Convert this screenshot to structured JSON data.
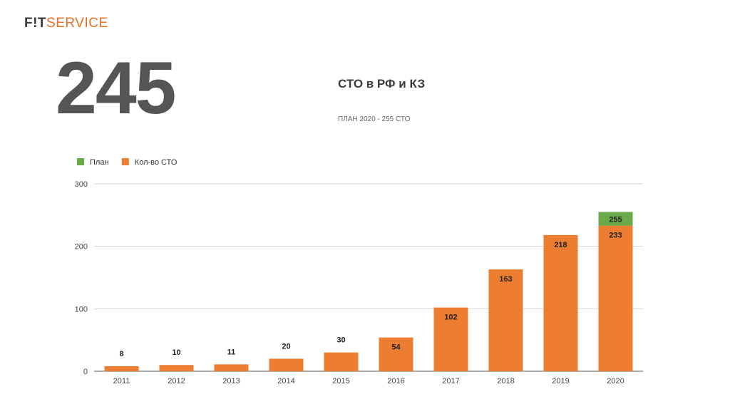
{
  "logo": {
    "part1": "F!T",
    "part2": "SERVICE"
  },
  "headline_number": "245",
  "headline": "СТО в РФ и КЗ",
  "subline": "ПЛАН 2020 - 255 СТО",
  "colors": {
    "plan": "#6aaa4a",
    "count": "#ed7d31",
    "logo_accent": "#e8702a",
    "big_number": "#555555"
  },
  "chart_data": {
    "type": "bar",
    "stacked": true,
    "categories": [
      "2011",
      "2012",
      "2013",
      "2014",
      "2015",
      "2016",
      "2017",
      "2018",
      "2019",
      "2020"
    ],
    "series": [
      {
        "name": "Кол-во СТО",
        "color": "#ed7d31",
        "values": [
          8,
          10,
          11,
          20,
          30,
          54,
          102,
          163,
          218,
          233
        ],
        "labels": [
          "8",
          "10",
          "11",
          "20",
          "30",
          "54",
          "102",
          "163",
          "218",
          "233"
        ]
      },
      {
        "name": "План",
        "color": "#6aaa4a",
        "values": [
          0,
          0,
          0,
          0,
          0,
          0,
          0,
          0,
          0,
          22
        ],
        "labels": [
          "",
          "",
          "",
          "",
          "",
          "",
          "",
          "",
          "",
          "255"
        ]
      }
    ],
    "legend": [
      {
        "name": "План",
        "color": "#6aaa4a"
      },
      {
        "name": "Кол-во СТО",
        "color": "#ed7d31"
      }
    ],
    "ylim": [
      0,
      300
    ],
    "yticks": [
      0,
      100,
      200,
      300
    ],
    "grid": true,
    "legend_position": "top-left"
  }
}
